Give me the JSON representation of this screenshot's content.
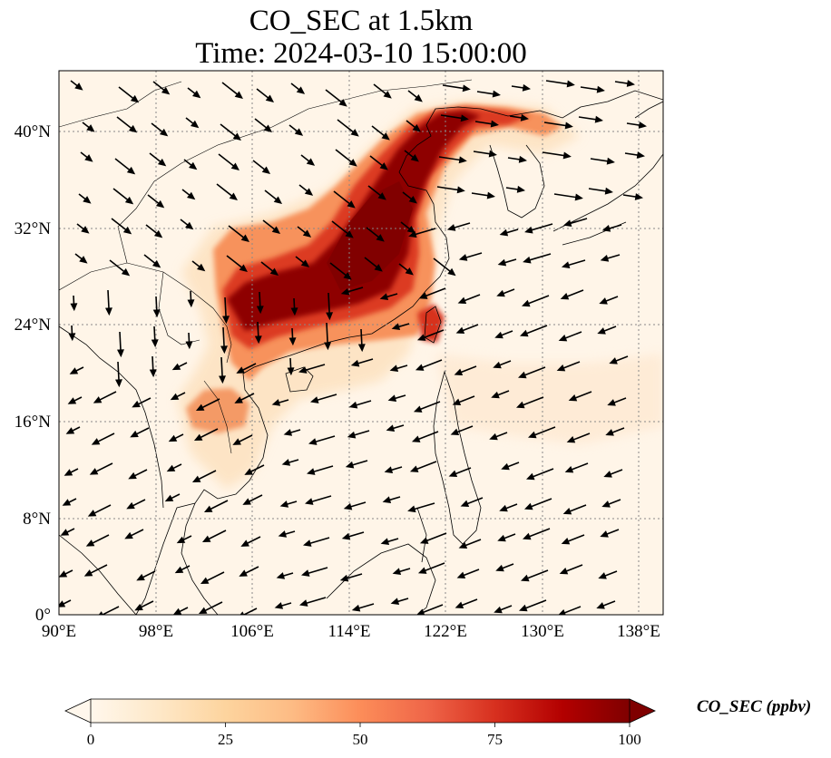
{
  "title": {
    "line1": "CO_SEC at 1.5km",
    "line2": "Time: 2024-03-10 15:00:00"
  },
  "map": {
    "lon_range": [
      90,
      140
    ],
    "lat_range": [
      0,
      45
    ],
    "lon_ticks": [
      "90°E",
      "98°E",
      "106°E",
      "114°E",
      "122°E",
      "130°E",
      "138°E"
    ],
    "lat_ticks": [
      "0°",
      "8°N",
      "16°N",
      "24°N",
      "32°N",
      "40°N"
    ],
    "grid": "dotted",
    "features": [
      "coastlines",
      "country-borders",
      "co-concentration-field",
      "wind-vectors"
    ]
  },
  "colorbar": {
    "label": "CO_SEC (ppbv)",
    "ticks": [
      "0",
      "25",
      "50",
      "75",
      "100"
    ],
    "min": 0,
    "max": 100,
    "extend": "both",
    "colormap": [
      "#fff7ec",
      "#fee8c8",
      "#fdd49e",
      "#fdbb84",
      "#fc8d59",
      "#ef6548",
      "#d7301f",
      "#b30000",
      "#7f0000"
    ]
  }
}
